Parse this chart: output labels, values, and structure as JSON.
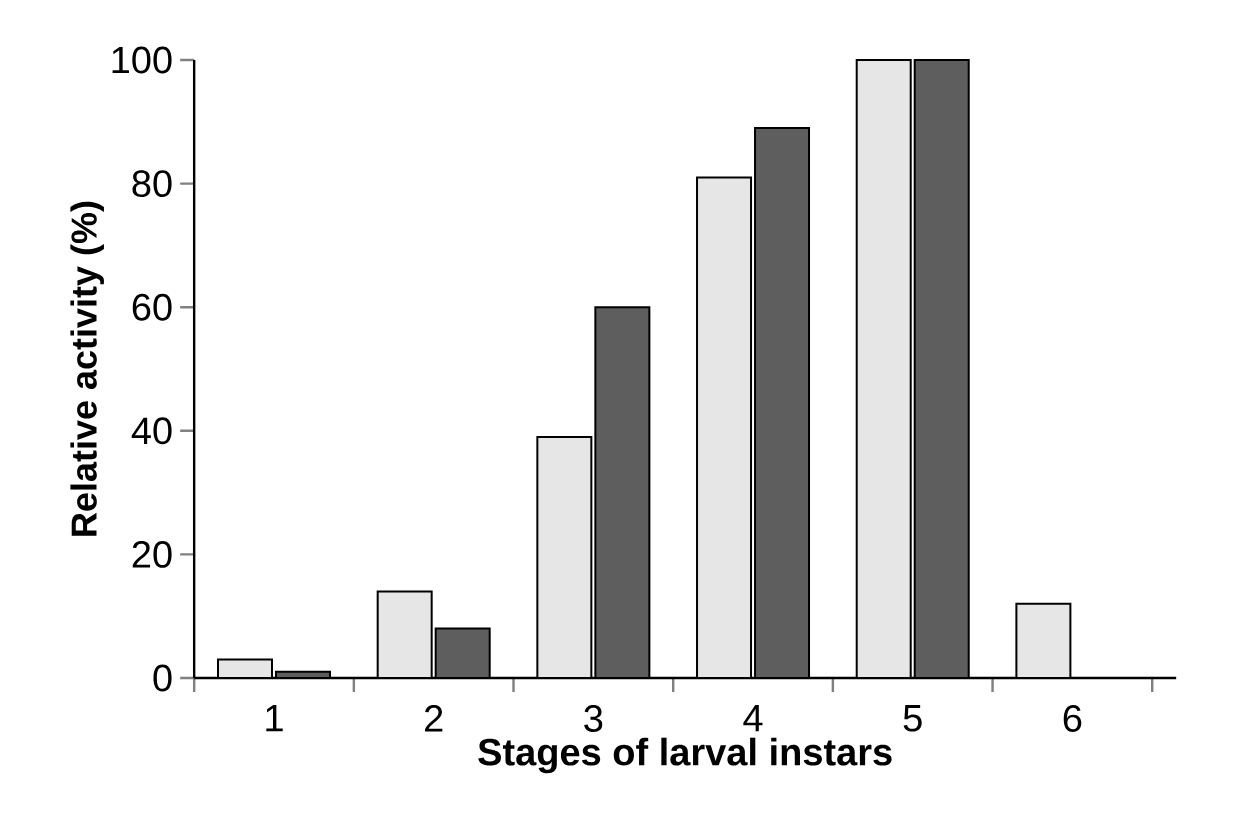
{
  "chart_data": {
    "type": "bar",
    "xlabel": "Stages of larval instars",
    "ylabel": "Relative activity (%)",
    "categories": [
      "1",
      "2",
      "3",
      "4",
      "5",
      "6"
    ],
    "series": [
      {
        "color": "#e6e6e6",
        "values": [
          3,
          14,
          39,
          81,
          100,
          12
        ]
      },
      {
        "color": "#5e5e5e",
        "values": [
          1,
          8,
          60,
          89,
          100,
          null
        ]
      }
    ],
    "ylim": [
      0,
      100
    ],
    "yticks": [
      0,
      20,
      40,
      60,
      80,
      100
    ],
    "grid": false
  }
}
